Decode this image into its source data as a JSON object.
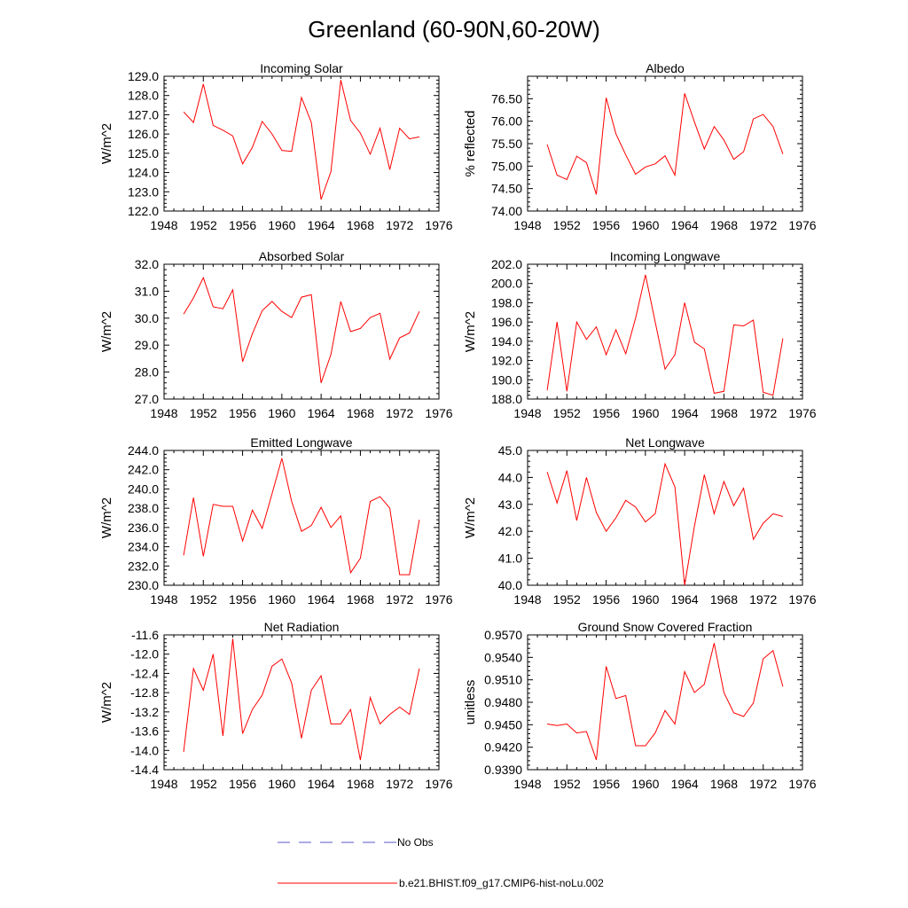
{
  "title": "Greenland (60-90N,60-20W)",
  "legend": {
    "obs_label": "No Obs",
    "model_label": "b.e21.BHIST.f09_g17.CMIP6-hist-noLu.002",
    "obs_color": "#5a5ac8",
    "model_color": "#ff0000"
  },
  "chart_data": [
    {
      "type": "line",
      "title": "Incoming Solar",
      "ylabel": "W/m^2",
      "xlim": [
        1948,
        1976
      ],
      "ylim": [
        122.0,
        129.0
      ],
      "xticks": [
        1948,
        1952,
        1956,
        1960,
        1964,
        1968,
        1972,
        1976
      ],
      "xtick_labels": [
        "1948",
        "1952",
        "1956",
        "1960",
        "1964",
        "1968",
        "1972",
        "1976"
      ],
      "yticks": [
        122.0,
        123.0,
        124.0,
        125.0,
        126.0,
        127.0,
        128.0,
        129.0
      ],
      "ytick_labels": [
        "122.0",
        "123.0",
        "124.0",
        "125.0",
        "126.0",
        "127.0",
        "128.0",
        "129.0"
      ],
      "x": [
        1950,
        1951,
        1952,
        1953,
        1954,
        1955,
        1956,
        1957,
        1958,
        1959,
        1960,
        1961,
        1962,
        1963,
        1964,
        1965,
        1966,
        1967,
        1968,
        1969,
        1970,
        1971,
        1972,
        1973,
        1974
      ],
      "values": [
        127.15,
        126.6,
        128.6,
        126.45,
        126.2,
        125.9,
        124.45,
        125.3,
        126.65,
        126.0,
        125.15,
        125.1,
        127.9,
        126.6,
        122.6,
        124.05,
        128.8,
        126.7,
        126.05,
        124.95,
        126.3,
        124.15,
        126.3,
        125.75,
        125.85
      ]
    },
    {
      "type": "line",
      "title": "Albedo",
      "ylabel": "% reflected",
      "xlim": [
        1948,
        1976
      ],
      "ylim": [
        74.0,
        77.0
      ],
      "xticks": [
        1948,
        1952,
        1956,
        1960,
        1964,
        1968,
        1972,
        1976
      ],
      "xtick_labels": [
        "1948",
        "1952",
        "1956",
        "1960",
        "1964",
        "1968",
        "1972",
        "1976"
      ],
      "yticks": [
        74.0,
        74.5,
        75.0,
        75.5,
        76.0,
        76.5
      ],
      "ytick_labels": [
        "74.00",
        "74.50",
        "75.00",
        "75.50",
        "76.00",
        "76.50"
      ],
      "x": [
        1950,
        1951,
        1952,
        1953,
        1954,
        1955,
        1956,
        1957,
        1958,
        1959,
        1960,
        1961,
        1962,
        1963,
        1964,
        1965,
        1966,
        1967,
        1968,
        1969,
        1970,
        1971,
        1972,
        1973,
        1974
      ],
      "values": [
        75.48,
        74.8,
        74.7,
        75.22,
        75.08,
        74.37,
        76.52,
        75.72,
        75.25,
        74.82,
        74.98,
        75.05,
        75.23,
        74.8,
        76.62,
        75.98,
        75.38,
        75.88,
        75.58,
        75.15,
        75.32,
        76.05,
        76.15,
        75.88,
        75.27
      ]
    },
    {
      "type": "line",
      "title": "Absorbed Solar",
      "ylabel": "W/m^2",
      "xlim": [
        1948,
        1976
      ],
      "ylim": [
        27.0,
        32.0
      ],
      "xticks": [
        1948,
        1952,
        1956,
        1960,
        1964,
        1968,
        1972,
        1976
      ],
      "xtick_labels": [
        "1948",
        "1952",
        "1956",
        "1960",
        "1964",
        "1968",
        "1972",
        "1976"
      ],
      "yticks": [
        27.0,
        28.0,
        29.0,
        30.0,
        31.0,
        32.0
      ],
      "ytick_labels": [
        "27.0",
        "28.0",
        "29.0",
        "30.0",
        "31.0",
        "32.0"
      ],
      "x": [
        1950,
        1951,
        1952,
        1953,
        1954,
        1955,
        1956,
        1957,
        1958,
        1959,
        1960,
        1961,
        1962,
        1963,
        1964,
        1965,
        1966,
        1967,
        1968,
        1969,
        1970,
        1971,
        1972,
        1973,
        1974
      ],
      "values": [
        30.15,
        30.75,
        31.5,
        30.42,
        30.35,
        31.05,
        28.38,
        29.42,
        30.28,
        30.62,
        30.25,
        30.02,
        30.78,
        30.87,
        27.6,
        28.65,
        30.62,
        29.5,
        29.62,
        30.02,
        30.18,
        28.48,
        29.27,
        29.45,
        30.25
      ]
    },
    {
      "type": "line",
      "title": "Incoming Longwave",
      "ylabel": "W/m^2",
      "xlim": [
        1948,
        1976
      ],
      "ylim": [
        188.0,
        202.0
      ],
      "xticks": [
        1948,
        1952,
        1956,
        1960,
        1964,
        1968,
        1972,
        1976
      ],
      "xtick_labels": [
        "1948",
        "1952",
        "1956",
        "1960",
        "1964",
        "1968",
        "1972",
        "1976"
      ],
      "yticks": [
        188.0,
        190.0,
        192.0,
        194.0,
        196.0,
        198.0,
        200.0,
        202.0
      ],
      "ytick_labels": [
        "188.0",
        "190.0",
        "192.0",
        "194.0",
        "196.0",
        "198.0",
        "200.0",
        "202.0"
      ],
      "x": [
        1950,
        1951,
        1952,
        1953,
        1954,
        1955,
        1956,
        1957,
        1958,
        1959,
        1960,
        1961,
        1962,
        1963,
        1964,
        1965,
        1966,
        1967,
        1968,
        1969,
        1970,
        1971,
        1972,
        1973,
        1974
      ],
      "values": [
        188.9,
        196.0,
        188.8,
        196.0,
        194.2,
        195.5,
        192.6,
        195.2,
        192.7,
        196.4,
        200.9,
        196.0,
        191.1,
        192.6,
        198.0,
        193.9,
        193.2,
        188.6,
        188.8,
        195.7,
        195.6,
        196.2,
        188.7,
        188.4,
        194.3
      ]
    },
    {
      "type": "line",
      "title": "Emitted Longwave",
      "ylabel": "W/m^2",
      "xlim": [
        1948,
        1976
      ],
      "ylim": [
        230.0,
        244.0
      ],
      "xticks": [
        1948,
        1952,
        1956,
        1960,
        1964,
        1968,
        1972,
        1976
      ],
      "xtick_labels": [
        "1948",
        "1952",
        "1956",
        "1960",
        "1964",
        "1968",
        "1972",
        "1976"
      ],
      "yticks": [
        230.0,
        232.0,
        234.0,
        236.0,
        238.0,
        240.0,
        242.0,
        244.0
      ],
      "ytick_labels": [
        "230.0",
        "232.0",
        "234.0",
        "236.0",
        "238.0",
        "240.0",
        "242.0",
        "244.0"
      ],
      "x": [
        1950,
        1951,
        1952,
        1953,
        1954,
        1955,
        1956,
        1957,
        1958,
        1959,
        1960,
        1961,
        1962,
        1963,
        1964,
        1965,
        1966,
        1967,
        1968,
        1969,
        1970,
        1971,
        1972,
        1973,
        1974
      ],
      "values": [
        233.1,
        239.1,
        233.0,
        238.4,
        238.2,
        238.2,
        234.6,
        237.8,
        235.9,
        239.5,
        243.2,
        238.7,
        235.6,
        236.2,
        238.1,
        236.0,
        237.2,
        231.3,
        232.8,
        238.7,
        239.2,
        238.0,
        231.1,
        231.1,
        236.8
      ]
    },
    {
      "type": "line",
      "title": "Net Longwave",
      "ylabel": "W/m^2",
      "xlim": [
        1948,
        1976
      ],
      "ylim": [
        40.0,
        45.0
      ],
      "xticks": [
        1948,
        1952,
        1956,
        1960,
        1964,
        1968,
        1972,
        1976
      ],
      "xtick_labels": [
        "1948",
        "1952",
        "1956",
        "1960",
        "1964",
        "1968",
        "1972",
        "1976"
      ],
      "yticks": [
        40.0,
        41.0,
        42.0,
        43.0,
        44.0,
        45.0
      ],
      "ytick_labels": [
        "40.0",
        "41.0",
        "42.0",
        "43.0",
        "44.0",
        "45.0"
      ],
      "x": [
        1950,
        1951,
        1952,
        1953,
        1954,
        1955,
        1956,
        1957,
        1958,
        1959,
        1960,
        1961,
        1962,
        1963,
        1964,
        1965,
        1966,
        1967,
        1968,
        1969,
        1970,
        1971,
        1972,
        1973,
        1974
      ],
      "values": [
        44.2,
        43.05,
        44.25,
        42.4,
        44.0,
        42.7,
        42.0,
        42.5,
        43.15,
        42.9,
        42.35,
        42.65,
        44.5,
        43.65,
        40.0,
        42.2,
        44.1,
        42.65,
        43.85,
        42.95,
        43.6,
        41.7,
        42.3,
        42.65,
        42.55
      ]
    },
    {
      "type": "line",
      "title": "Net Radiation",
      "ylabel": "W/m^2",
      "xlim": [
        1948,
        1976
      ],
      "ylim": [
        -14.4,
        -11.6
      ],
      "xticks": [
        1948,
        1952,
        1956,
        1960,
        1964,
        1968,
        1972,
        1976
      ],
      "xtick_labels": [
        "1948",
        "1952",
        "1956",
        "1960",
        "1964",
        "1968",
        "1972",
        "1976"
      ],
      "yticks": [
        -14.4,
        -14.0,
        -13.6,
        -13.2,
        -12.8,
        -12.4,
        -12.0,
        -11.6
      ],
      "ytick_labels": [
        "-14.4",
        "-14.0",
        "-13.6",
        "-13.2",
        "-12.8",
        "-12.4",
        "-12.0",
        "-11.6"
      ],
      "x": [
        1950,
        1951,
        1952,
        1953,
        1954,
        1955,
        1956,
        1957,
        1958,
        1959,
        1960,
        1961,
        1962,
        1963,
        1964,
        1965,
        1966,
        1967,
        1968,
        1969,
        1970,
        1971,
        1972,
        1973,
        1974
      ],
      "values": [
        -14.03,
        -12.3,
        -12.75,
        -12.0,
        -13.7,
        -11.68,
        -13.65,
        -13.15,
        -12.85,
        -12.25,
        -12.1,
        -12.6,
        -13.75,
        -12.75,
        -12.45,
        -13.45,
        -13.45,
        -13.15,
        -14.2,
        -12.9,
        -13.45,
        -13.25,
        -13.1,
        -13.25,
        -12.3
      ]
    },
    {
      "type": "line",
      "title": "Ground Snow Covered Fraction",
      "ylabel": "unitless",
      "xlim": [
        1948,
        1976
      ],
      "ylim": [
        0.939,
        0.957
      ],
      "xticks": [
        1948,
        1952,
        1956,
        1960,
        1964,
        1968,
        1972,
        1976
      ],
      "xtick_labels": [
        "1948",
        "1952",
        "1956",
        "1960",
        "1964",
        "1968",
        "1972",
        "1976"
      ],
      "yticks": [
        0.939,
        0.942,
        0.945,
        0.948,
        0.951,
        0.954,
        0.957
      ],
      "ytick_labels": [
        "0.9390",
        "0.9420",
        "0.9450",
        "0.9480",
        "0.9510",
        "0.9540",
        "0.9570"
      ],
      "x": [
        1950,
        1951,
        1952,
        1953,
        1954,
        1955,
        1956,
        1957,
        1958,
        1959,
        1960,
        1961,
        1962,
        1963,
        1964,
        1965,
        1966,
        1967,
        1968,
        1969,
        1970,
        1971,
        1972,
        1973,
        1974
      ],
      "values": [
        0.9451,
        0.9449,
        0.9451,
        0.9439,
        0.9441,
        0.9403,
        0.9528,
        0.9485,
        0.9489,
        0.9422,
        0.9422,
        0.9439,
        0.9469,
        0.9451,
        0.9521,
        0.9493,
        0.9504,
        0.9559,
        0.9493,
        0.9466,
        0.9461,
        0.9479,
        0.9538,
        0.9549,
        0.9501
      ]
    }
  ]
}
